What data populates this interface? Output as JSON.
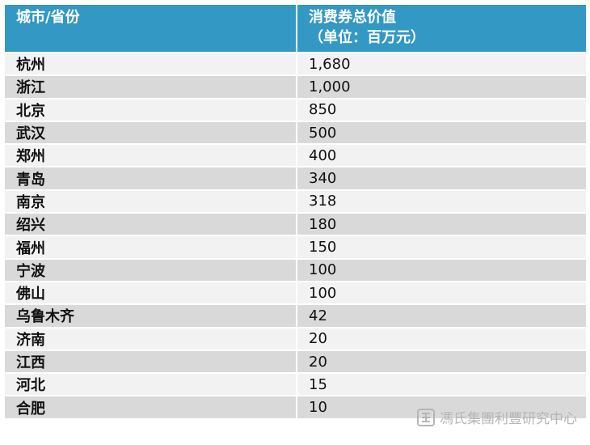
{
  "table": {
    "header": [
      "城市/省份",
      "消费券总价值",
      "（单位：百万元）"
    ],
    "rows": [
      [
        "杭州",
        "1,680"
      ],
      [
        "浙江",
        "1,000"
      ],
      [
        "北京",
        "850"
      ],
      [
        "武汉",
        "500"
      ],
      [
        "郑州",
        "400"
      ],
      [
        "青岛",
        "340"
      ],
      [
        "南京",
        "318"
      ],
      [
        "绍兴",
        "180"
      ],
      [
        "福州",
        "150"
      ],
      [
        "宁波",
        "100"
      ],
      [
        "佛山",
        "100"
      ],
      [
        "乌鲁木齐",
        "42"
      ],
      [
        "济南",
        "20"
      ],
      [
        "江西",
        "20"
      ],
      [
        "河北",
        "15"
      ],
      [
        "合肥",
        "10"
      ]
    ]
  },
  "watermark": "馮氏集團利豐研究中心"
}
